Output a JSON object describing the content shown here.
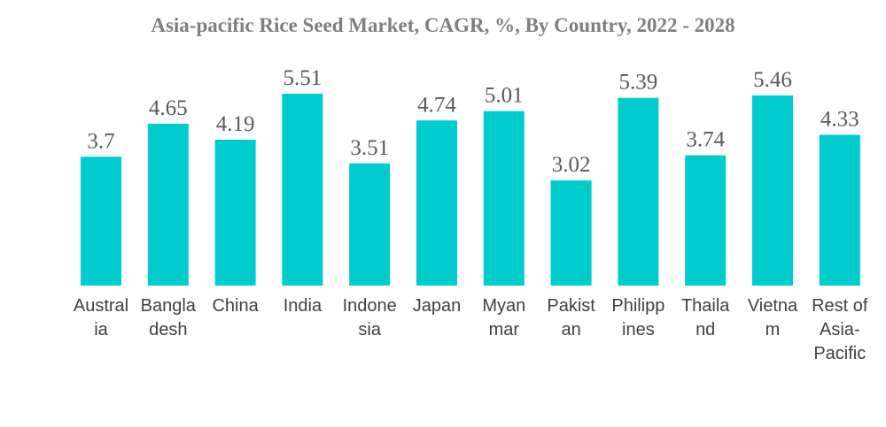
{
  "chart_data": {
    "type": "bar",
    "title": "Asia-pacific Rice Seed Market, CAGR, %, By Country, 2022 - 2028",
    "categories": [
      [
        "Austral",
        "ia"
      ],
      [
        "Bangla",
        "desh"
      ],
      [
        "China"
      ],
      [
        "India"
      ],
      [
        "Indone",
        "sia"
      ],
      [
        "Japan"
      ],
      [
        "Myan",
        "mar"
      ],
      [
        "Pakist",
        "an"
      ],
      [
        "Philipp",
        "ines"
      ],
      [
        "Thaila",
        "nd"
      ],
      [
        "Vietna",
        "m"
      ],
      [
        "Rest of",
        "Asia-",
        "Pacific"
      ]
    ],
    "values": [
      3.7,
      4.65,
      4.19,
      5.51,
      3.51,
      4.74,
      5.01,
      3.02,
      5.39,
      3.74,
      5.46,
      4.33
    ],
    "value_labels": [
      "3.7",
      "4.65",
      "4.19",
      "5.51",
      "3.51",
      "4.74",
      "5.01",
      "3.02",
      "5.39",
      "3.74",
      "5.46",
      "4.33"
    ],
    "ylim": [
      0,
      5.51
    ],
    "bar_color": "#00CBCD",
    "grid": false,
    "legend": "none"
  }
}
